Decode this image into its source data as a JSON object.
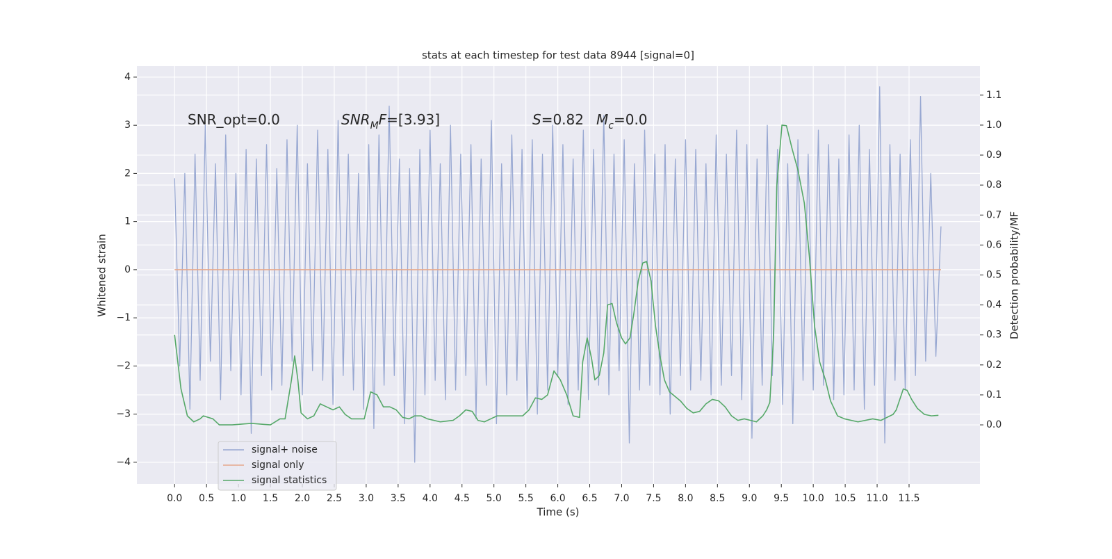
{
  "chart_data": {
    "type": "line",
    "title": "stats at each timestep for test data 8944 [signal=0]",
    "xlabel": "Time (s)",
    "ylabel": "Whitened strain",
    "y2label": "Detection probability/MF",
    "annotations": [
      [
        "SNR_opt=0.0"
      ],
      [
        "SNR",
        "M",
        "F",
        "=[3.93]"
      ],
      [
        "S",
        "=0.82",
        "M",
        "c",
        "=0.0"
      ]
    ],
    "xlim": [
      -0.59,
      12.61
    ],
    "xticks": [
      {
        "value": 0,
        "label": "0.0"
      },
      0.5,
      {
        "value": 1,
        "label": "1.0"
      },
      1.5,
      {
        "value": 2,
        "label": "2.0"
      },
      2.5,
      {
        "value": 3,
        "label": "3.0"
      },
      3.5,
      {
        "value": 4,
        "label": "4.0"
      },
      4.5,
      {
        "value": 5,
        "label": "5.0"
      },
      5.5,
      {
        "value": 6,
        "label": "6.0"
      },
      6.5,
      {
        "value": 7,
        "label": "7.0"
      },
      7.5,
      {
        "value": 8,
        "label": "8.0"
      },
      8.5,
      {
        "value": 9,
        "label": "9.0"
      },
      9.5,
      {
        "value": 10,
        "label": "10.0"
      },
      10.5,
      {
        "value": 11,
        "label": "11.0"
      },
      11.5
    ],
    "ylim": [
      -4.45,
      4.23
    ],
    "yticks": [
      {
        "value": -4,
        "label": "−4"
      },
      {
        "value": -3,
        "label": "−3"
      },
      {
        "value": -2,
        "label": "−2"
      },
      {
        "value": -1,
        "label": "−1"
      },
      0,
      1,
      2,
      3,
      4
    ],
    "y2lim": [
      -0.197,
      1.197
    ],
    "y2ticks": [
      {
        "value": 0,
        "label": "0.0"
      },
      0.1,
      0.2,
      0.3,
      0.4,
      0.5,
      0.6,
      0.7,
      0.8,
      0.9,
      {
        "value": 1,
        "label": "1.0"
      },
      1.1
    ],
    "grid": true,
    "series": [
      {
        "name": "signal+ noise",
        "color": "#98a8d2",
        "x": [
          0,
          0.08,
          0.16,
          0.24,
          0.32,
          0.4,
          0.48,
          0.56,
          0.64,
          0.72,
          0.8,
          0.88,
          0.96,
          1.04,
          1.12,
          1.2,
          1.28,
          1.36,
          1.44,
          1.52,
          1.6,
          1.68,
          1.76,
          1.84,
          1.92,
          2,
          2.08,
          2.16,
          2.24,
          2.32,
          2.4,
          2.48,
          2.56,
          2.64,
          2.72,
          2.8,
          2.88,
          2.96,
          3.04,
          3.12,
          3.2,
          3.28,
          3.36,
          3.44,
          3.52,
          3.6,
          3.68,
          3.76,
          3.84,
          3.92,
          4,
          4.08,
          4.16,
          4.24,
          4.32,
          4.4,
          4.48,
          4.56,
          4.64,
          4.72,
          4.8,
          4.88,
          4.96,
          5.04,
          5.12,
          5.2,
          5.28,
          5.36,
          5.44,
          5.52,
          5.6,
          5.68,
          5.76,
          5.84,
          5.92,
          6,
          6.08,
          6.16,
          6.24,
          6.32,
          6.4,
          6.48,
          6.56,
          6.64,
          6.72,
          6.8,
          6.88,
          6.96,
          7.04,
          7.12,
          7.2,
          7.28,
          7.36,
          7.44,
          7.52,
          7.6,
          7.68,
          7.76,
          7.84,
          7.92,
          8,
          8.08,
          8.16,
          8.24,
          8.32,
          8.4,
          8.48,
          8.56,
          8.64,
          8.72,
          8.8,
          8.88,
          8.96,
          9.04,
          9.12,
          9.2,
          9.28,
          9.36,
          9.44,
          9.52,
          9.6,
          9.68,
          9.76,
          9.84,
          9.92,
          10,
          10.08,
          10.16,
          10.24,
          10.32,
          10.4,
          10.48,
          10.56,
          10.64,
          10.72,
          10.8,
          10.88,
          10.96,
          11.04,
          11.12,
          11.2,
          11.28,
          11.36,
          11.44,
          11.52,
          11.6,
          11.68,
          11.76,
          11.84,
          11.92,
          12
        ],
        "values": [
          1.9,
          -2.0,
          2.0,
          -2.9,
          2.4,
          -2.3,
          3.0,
          -1.9,
          2.2,
          -2.7,
          2.8,
          -2.1,
          2.0,
          -2.6,
          2.5,
          -3.4,
          2.3,
          -2.2,
          2.6,
          -2.5,
          2.1,
          -2.4,
          2.7,
          -1.9,
          3.0,
          -2.6,
          2.2,
          -2.1,
          2.9,
          -2.3,
          2.5,
          -2.8,
          3.1,
          -2.2,
          2.4,
          -2.5,
          2.0,
          -2.9,
          2.6,
          -3.3,
          2.8,
          -2.4,
          3.4,
          -2.2,
          2.3,
          -3.2,
          2.1,
          -4.0,
          2.5,
          -2.6,
          2.9,
          -2.3,
          2.2,
          -2.7,
          3.0,
          -2.5,
          2.4,
          -2.2,
          2.6,
          -3.1,
          2.3,
          -2.4,
          3.1,
          -3.2,
          2.2,
          -2.6,
          2.8,
          -2.3,
          2.5,
          -2.9,
          2.7,
          -3.0,
          2.4,
          -2.5,
          3.0,
          -2.2,
          2.6,
          -2.8,
          2.3,
          -2.5,
          2.9,
          -2.7,
          2.5,
          -2.4,
          3.2,
          -2.6,
          2.4,
          -2.1,
          2.7,
          -3.6,
          2.2,
          -2.5,
          2.9,
          -2.4,
          2.4,
          -2.6,
          2.6,
          -3.0,
          2.3,
          -2.2,
          2.7,
          -2.5,
          2.5,
          -2.3,
          2.2,
          -2.6,
          2.8,
          -2.4,
          2.4,
          -2.2,
          2.9,
          -2.7,
          2.6,
          -3.5,
          2.3,
          -2.4,
          3.0,
          -2.2,
          2.5,
          -2.8,
          2.2,
          -3.2,
          2.7,
          -2.3,
          2.4,
          -2.5,
          2.9,
          -2.4,
          2.6,
          -2.7,
          2.3,
          -2.6,
          2.8,
          -2.5,
          3.0,
          -2.9,
          2.5,
          -2.4,
          3.8,
          -3.6,
          2.6,
          -2.3,
          2.4,
          -2.5,
          2.7,
          -2.2,
          3.6,
          -1.9,
          2.0,
          -1.8,
          0.9
        ]
      },
      {
        "name": "signal only",
        "color": "#e6a88b",
        "x": [
          0,
          12
        ],
        "values": [
          0,
          0
        ]
      },
      {
        "name": "signal statistics",
        "color": "#55a868",
        "axis": "y2",
        "x": [
          0,
          0.1,
          0.2,
          0.3,
          0.4,
          0.45,
          0.6,
          0.7,
          0.9,
          1.2,
          1.5,
          1.65,
          1.73,
          1.83,
          1.88,
          1.93,
          1.98,
          2.08,
          2.18,
          2.28,
          2.38,
          2.48,
          2.58,
          2.67,
          2.77,
          2.87,
          2.97,
          3.07,
          3.17,
          3.27,
          3.37,
          3.47,
          3.57,
          3.67,
          3.76,
          3.86,
          3.96,
          4.16,
          4.36,
          4.46,
          4.56,
          4.66,
          4.75,
          4.85,
          4.95,
          5.05,
          5.25,
          5.45,
          5.55,
          5.65,
          5.75,
          5.84,
          5.94,
          6.04,
          6.14,
          6.24,
          6.34,
          6.39,
          6.46,
          6.53,
          6.58,
          6.65,
          6.72,
          6.78,
          6.85,
          6.92,
          7.0,
          7.06,
          7.13,
          7.19,
          7.26,
          7.33,
          7.39,
          7.46,
          7.53,
          7.6,
          7.67,
          7.75,
          7.92,
          8.02,
          8.12,
          8.22,
          8.32,
          8.42,
          8.52,
          8.62,
          8.72,
          8.82,
          8.92,
          9.02,
          9.11,
          9.21,
          9.27,
          9.32,
          9.38,
          9.43,
          9.51,
          9.58,
          9.67,
          9.76,
          9.86,
          9.94,
          10.02,
          10.1,
          10.19,
          10.27,
          10.38,
          10.49,
          10.7,
          10.93,
          11.06,
          11.25,
          11.3,
          11.41,
          11.47,
          11.54,
          11.63,
          11.74,
          11.85,
          11.96
        ],
        "values": [
          0.3,
          0.12,
          0.03,
          0.01,
          0.02,
          0.03,
          0.02,
          0.0,
          0.0,
          0.005,
          0.0,
          0.02,
          0.02,
          0.15,
          0.23,
          0.15,
          0.04,
          0.02,
          0.03,
          0.07,
          0.06,
          0.05,
          0.06,
          0.035,
          0.02,
          0.02,
          0.02,
          0.11,
          0.1,
          0.06,
          0.06,
          0.05,
          0.025,
          0.02,
          0.03,
          0.03,
          0.02,
          0.01,
          0.015,
          0.03,
          0.05,
          0.045,
          0.015,
          0.01,
          0.02,
          0.03,
          0.03,
          0.03,
          0.05,
          0.09,
          0.085,
          0.1,
          0.18,
          0.15,
          0.1,
          0.03,
          0.025,
          0.21,
          0.29,
          0.22,
          0.15,
          0.165,
          0.24,
          0.4,
          0.405,
          0.34,
          0.29,
          0.27,
          0.29,
          0.37,
          0.48,
          0.54,
          0.545,
          0.48,
          0.33,
          0.23,
          0.15,
          0.11,
          0.08,
          0.055,
          0.04,
          0.045,
          0.07,
          0.085,
          0.08,
          0.06,
          0.03,
          0.015,
          0.02,
          0.015,
          0.01,
          0.03,
          0.05,
          0.075,
          0.3,
          0.8,
          1.0,
          0.998,
          0.92,
          0.85,
          0.74,
          0.56,
          0.33,
          0.21,
          0.15,
          0.08,
          0.03,
          0.02,
          0.01,
          0.02,
          0.015,
          0.035,
          0.05,
          0.12,
          0.115,
          0.085,
          0.055,
          0.035,
          0.03,
          0.032
        ]
      }
    ]
  }
}
